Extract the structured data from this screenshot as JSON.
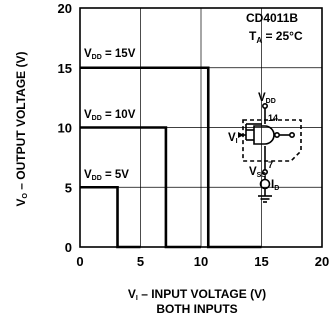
{
  "chart_data": {
    "type": "line",
    "xlabel": "V",
    "xlabel_sub": "I",
    "xlabel_rest": " – INPUT VOLTAGE (V)",
    "xlabel2": "BOTH INPUTS",
    "ylabel": "V",
    "ylabel_sub": "O",
    "ylabel_rest": " – OUTPUT VOLTAGE (V)",
    "xlim": [
      0,
      20
    ],
    "ylim": [
      0,
      20
    ],
    "xticks": [
      "0",
      "5",
      "10",
      "15",
      "20"
    ],
    "yticks": [
      "0",
      "5",
      "10",
      "15",
      "20"
    ],
    "grid": true,
    "part": "CD4011B",
    "temp_label": {
      "main": "T",
      "sub": "A",
      "rest": " = 25°C"
    },
    "series": [
      {
        "label": {
          "main": "V",
          "sub": "DD",
          "rest": " = 15V"
        },
        "x": [
          0,
          10.6,
          10.6,
          15
        ],
        "y": [
          15,
          15,
          0,
          0
        ]
      },
      {
        "label": {
          "main": "V",
          "sub": "DD",
          "rest": " = 10V"
        },
        "x": [
          0,
          7.1,
          7.1,
          10
        ],
        "y": [
          10,
          10,
          0,
          0
        ]
      },
      {
        "label": {
          "main": "V",
          "sub": "DD",
          "rest": " = 5V"
        },
        "x": [
          0,
          3.1,
          3.1,
          5
        ],
        "y": [
          5,
          5,
          0,
          0
        ]
      }
    ],
    "schematic": {
      "vdd": {
        "main": "V",
        "sub": "DD"
      },
      "pin14": "14",
      "pin7": "7",
      "vi": {
        "main": "V",
        "sub": "I"
      },
      "vss": {
        "main": "V",
        "sub": "SS"
      },
      "id": {
        "main": "I",
        "sub": "D"
      }
    }
  }
}
